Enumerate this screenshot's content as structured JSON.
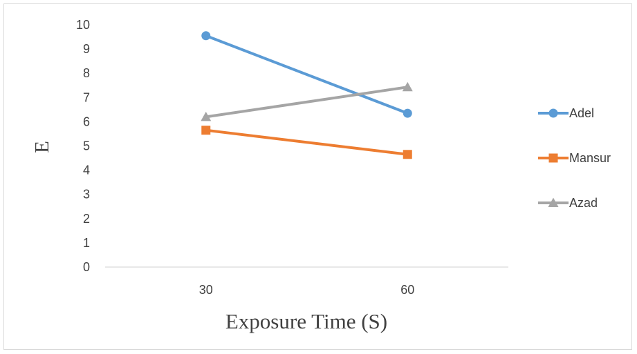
{
  "chart_data": {
    "type": "line",
    "title": "",
    "xlabel": "Exposure Time (S)",
    "ylabel": "E",
    "categories": [
      "30",
      "60"
    ],
    "ylim": [
      0,
      10
    ],
    "yticks": [
      "0",
      "1",
      "2",
      "3",
      "4",
      "5",
      "6",
      "7",
      "8",
      "9",
      "10"
    ],
    "grid": false,
    "legend_position": "right",
    "series": [
      {
        "name": "Adel",
        "values": [
          9.55,
          6.35
        ],
        "color": "#5b9bd5",
        "marker": "circle"
      },
      {
        "name": "Mansur",
        "values": [
          5.65,
          4.65
        ],
        "color": "#ed7d31",
        "marker": "square"
      },
      {
        "name": "Azad",
        "values": [
          6.2,
          7.43
        ],
        "color": "#a5a5a5",
        "marker": "triangle"
      }
    ]
  }
}
